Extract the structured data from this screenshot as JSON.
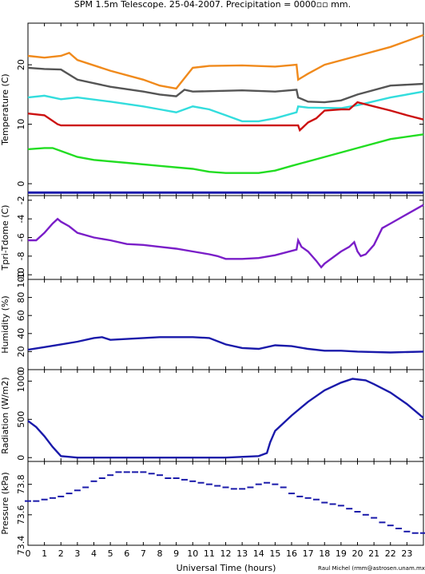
{
  "title": "SPM 1.5m Telescope. 25-04-2007. Precipitation = 0000▫▫ mm.",
  "xlabel": "Universal Time (hours)",
  "credit": "Raul Michel (rmm@astrosen.unam.mx)",
  "colors": {
    "orange": "#f08a1c",
    "gray": "#555555",
    "cyan": "#33dddd",
    "red": "#cc1111",
    "green": "#22dd22",
    "blue": "#1a1aaa",
    "purple": "#7a1ec8"
  },
  "chart_data": [
    {
      "type": "line",
      "ylabel": "Temperature (C)",
      "ylim": [
        -2,
        27
      ],
      "yticks": [
        0,
        10,
        20
      ],
      "xlim": [
        0,
        24
      ],
      "xticks": [
        0,
        1,
        2,
        3,
        4,
        5,
        6,
        7,
        8,
        9,
        10,
        11,
        12,
        13,
        14,
        15,
        16,
        17,
        18,
        19,
        20,
        21,
        22,
        23
      ],
      "series": [
        {
          "color": "orange",
          "x": [
            0,
            1,
            2,
            2.5,
            3,
            5,
            7,
            8,
            9,
            10,
            11,
            13,
            15,
            16.3,
            16.4,
            17,
            18,
            20,
            22,
            24
          ],
          "y": [
            21.5,
            21.2,
            21.5,
            22,
            20.8,
            19,
            17.5,
            16.5,
            16,
            19.5,
            19.8,
            19.9,
            19.7,
            20,
            17.5,
            18.5,
            20,
            21.5,
            23,
            25
          ]
        },
        {
          "color": "gray",
          "x": [
            0,
            1,
            2,
            3,
            5,
            7,
            8,
            9,
            9.5,
            10,
            13,
            15,
            16.3,
            16.4,
            17,
            18,
            19,
            20,
            22,
            24
          ],
          "y": [
            19.5,
            19.3,
            19.2,
            17.5,
            16.3,
            15.5,
            15,
            14.7,
            15.8,
            15.5,
            15.7,
            15.5,
            15.8,
            14.5,
            13.8,
            13.7,
            14,
            15,
            16.5,
            16.8
          ]
        },
        {
          "color": "cyan",
          "x": [
            0,
            1,
            2,
            3,
            5,
            7,
            8,
            9,
            10,
            11,
            12,
            13,
            14,
            15,
            16.3,
            16.4,
            17,
            19,
            20,
            22,
            24
          ],
          "y": [
            14.5,
            14.8,
            14.2,
            14.5,
            13.8,
            13,
            12.5,
            12,
            13,
            12.5,
            11.5,
            10.5,
            10.5,
            11,
            12,
            13,
            12.8,
            12.7,
            13.2,
            14.5,
            15.5
          ]
        },
        {
          "color": "red",
          "x": [
            0,
            1,
            1.8,
            2,
            5,
            10,
            15,
            16.4,
            16.5,
            17,
            17.5,
            18,
            19,
            19.5,
            20,
            21,
            22,
            23,
            24
          ],
          "y": [
            11.8,
            11.5,
            10,
            9.8,
            9.8,
            9.8,
            9.8,
            9.8,
            9,
            10.3,
            11,
            12.3,
            12.5,
            12.5,
            13.7,
            13,
            12.3,
            11.5,
            10.8
          ]
        },
        {
          "color": "green",
          "x": [
            0,
            1,
            1.5,
            2,
            3,
            4,
            6,
            8,
            10,
            11,
            12,
            14,
            15,
            16,
            18,
            20,
            22,
            24
          ],
          "y": [
            5.8,
            6,
            6,
            5.5,
            4.5,
            4,
            3.5,
            3,
            2.5,
            2,
            1.8,
            1.8,
            2.2,
            3,
            4.5,
            6,
            7.5,
            8.3
          ]
        },
        {
          "color": "blue",
          "x": [
            0,
            24
          ],
          "y": [
            -1.5,
            -1.5
          ]
        }
      ]
    },
    {
      "type": "line",
      "ylabel": "Tpri-Tdome (C)",
      "ylim": [
        -10.5,
        -1.5
      ],
      "yticks": [
        -10,
        -8,
        -6,
        -4,
        -2
      ],
      "xlim": [
        0,
        24
      ],
      "series": [
        {
          "color": "purple",
          "x": [
            0,
            0.5,
            1,
            1.5,
            1.8,
            2,
            2.5,
            3,
            4,
            5,
            6,
            7,
            8,
            9,
            10,
            11,
            11.5,
            12,
            13,
            14,
            15,
            16.3,
            16.4,
            16.6,
            17,
            17.5,
            17.8,
            18,
            19,
            19.5,
            19.8,
            20,
            20.2,
            20.5,
            21,
            21.5,
            22,
            23,
            24
          ],
          "y": [
            -6.3,
            -6.3,
            -5.5,
            -4.5,
            -4,
            -4.3,
            -4.8,
            -5.5,
            -6,
            -6.3,
            -6.7,
            -6.8,
            -7,
            -7.2,
            -7.5,
            -7.8,
            -8,
            -8.3,
            -8.3,
            -8.2,
            -7.9,
            -7.3,
            -6.3,
            -7,
            -7.5,
            -8.5,
            -9.2,
            -8.8,
            -7.5,
            -7,
            -6.5,
            -7.5,
            -8,
            -7.8,
            -6.8,
            -5,
            -4.5,
            -3.5,
            -2.5
          ]
        }
      ]
    },
    {
      "type": "line",
      "ylabel": "Humidity (%)",
      "ylim": [
        0,
        100
      ],
      "yticks": [
        0,
        20,
        40,
        60,
        80,
        100
      ],
      "xlim": [
        0,
        24
      ],
      "series": [
        {
          "color": "blue",
          "x": [
            0,
            1,
            2,
            3,
            4,
            4.5,
            5,
            6,
            7,
            8,
            9,
            10,
            11,
            12,
            13,
            14,
            15,
            16,
            17,
            18,
            19,
            20,
            22,
            24
          ],
          "y": [
            22,
            25,
            28,
            31,
            35,
            36,
            33,
            34,
            35,
            36,
            36,
            36,
            35,
            28,
            24,
            23,
            27,
            26,
            23,
            21,
            21,
            20,
            19,
            20
          ]
        }
      ]
    },
    {
      "type": "line",
      "ylabel": "Radiation (W/m2)",
      "ylim": [
        -50,
        1150
      ],
      "yticks": [
        0,
        500,
        1000
      ],
      "xlim": [
        0,
        24
      ],
      "series": [
        {
          "color": "blue",
          "x": [
            0,
            0.5,
            1,
            1.5,
            2,
            3,
            5,
            8,
            10,
            12,
            14,
            14.5,
            14.7,
            15,
            16,
            17,
            18,
            19,
            19.7,
            20.5,
            21,
            22,
            23,
            24
          ],
          "y": [
            480,
            400,
            280,
            140,
            20,
            0,
            0,
            0,
            0,
            0,
            20,
            60,
            200,
            350,
            550,
            730,
            880,
            980,
            1030,
            1010,
            960,
            850,
            700,
            520
          ]
        }
      ]
    },
    {
      "type": "scatter",
      "ylabel": "Pressure (kPa)",
      "ylim": [
        73.4,
        73.95
      ],
      "yticks": [
        73.4,
        73.6,
        73.8
      ],
      "xlim": [
        0,
        24
      ],
      "series": [
        {
          "color": "blue",
          "x": [
            0,
            0.5,
            1,
            1.5,
            2,
            2.5,
            3,
            3.5,
            4,
            4.5,
            5,
            5.5,
            6,
            6.5,
            7,
            7.5,
            8,
            8.5,
            9,
            9.5,
            10,
            10.5,
            11,
            11.5,
            12,
            12.5,
            13,
            13.5,
            14,
            14.5,
            15,
            15.5,
            16,
            16.5,
            17,
            17.5,
            18,
            18.5,
            19,
            19.5,
            20,
            20.5,
            21,
            21.5,
            22,
            22.5,
            23,
            23.5,
            24
          ],
          "y": [
            73.69,
            73.69,
            73.7,
            73.71,
            73.72,
            73.74,
            73.76,
            73.78,
            73.82,
            73.84,
            73.86,
            73.88,
            73.88,
            73.88,
            73.88,
            73.87,
            73.86,
            73.84,
            73.84,
            73.83,
            73.82,
            73.81,
            73.8,
            73.79,
            73.78,
            73.77,
            73.77,
            73.78,
            73.8,
            73.81,
            73.8,
            73.78,
            73.74,
            73.72,
            73.71,
            73.7,
            73.68,
            73.67,
            73.66,
            73.64,
            73.62,
            73.6,
            73.58,
            73.55,
            73.53,
            73.51,
            73.49,
            73.48,
            73.48
          ]
        }
      ]
    }
  ]
}
